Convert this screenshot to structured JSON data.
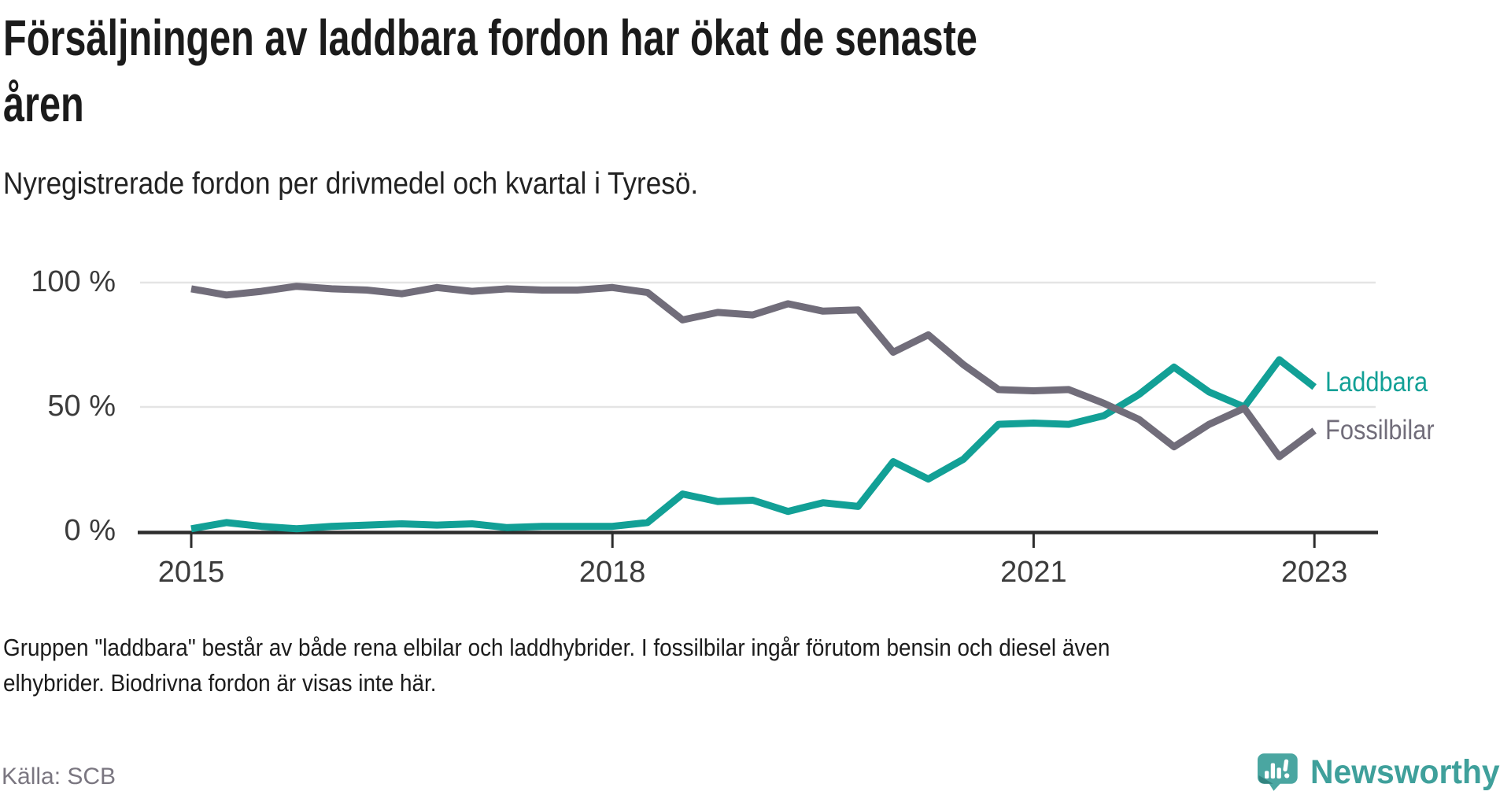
{
  "header": {
    "title_line1": "Försäljningen av laddbara fordon har ökat de senaste",
    "title_line2": "åren",
    "subtitle": "Nyregistrerade fordon per drivmedel och kvartal i Tyresö."
  },
  "chart_data": {
    "type": "line",
    "x": [
      "2015 Q1",
      "2015 Q2",
      "2015 Q3",
      "2015 Q4",
      "2016 Q1",
      "2016 Q2",
      "2016 Q3",
      "2016 Q4",
      "2017 Q1",
      "2017 Q2",
      "2017 Q3",
      "2017 Q4",
      "2018 Q1",
      "2018 Q2",
      "2018 Q3",
      "2018 Q4",
      "2019 Q1",
      "2019 Q2",
      "2019 Q3",
      "2019 Q4",
      "2020 Q1",
      "2020 Q2",
      "2020 Q3",
      "2020 Q4",
      "2021 Q1",
      "2021 Q2",
      "2021 Q3",
      "2021 Q4",
      "2022 Q1",
      "2022 Q2",
      "2022 Q3",
      "2022 Q4",
      "2023 Q1"
    ],
    "series": [
      {
        "name": "Laddbara",
        "color": "#12A096",
        "values": [
          1,
          3.5,
          2,
          1,
          2,
          2.5,
          3,
          2.5,
          3,
          1.5,
          2,
          2,
          2,
          3.5,
          15,
          12,
          12.5,
          8,
          11.5,
          10,
          28,
          21,
          29,
          43,
          43.5,
          43,
          46.5,
          55,
          66,
          56,
          50,
          69,
          58
        ]
      },
      {
        "name": "Fossilbilar",
        "color": "#716D7A",
        "values": [
          97.5,
          95,
          96.5,
          98.5,
          97.5,
          97,
          95.5,
          98,
          96.5,
          97.5,
          97,
          97,
          98,
          96,
          85,
          88,
          87,
          91.5,
          88.5,
          89,
          72,
          79,
          67,
          57,
          56.5,
          57,
          51.5,
          45,
          34,
          43,
          49.5,
          30,
          40.5
        ]
      }
    ],
    "title": "Försäljningen av laddbara fordon har ökat de senaste åren",
    "xlabel": "",
    "ylabel": "",
    "ylim": [
      0,
      100
    ],
    "unit": "%",
    "grid": "horizontal",
    "legend_position": "right of line ends",
    "y_ticks": [
      {
        "label": "0 %",
        "value": 0
      },
      {
        "label": "50 %",
        "value": 50
      },
      {
        "label": "100 %",
        "value": 100
      }
    ],
    "x_ticks": [
      {
        "label": "2015",
        "quarter_index": 0
      },
      {
        "label": "2018",
        "quarter_index": 12
      },
      {
        "label": "2021",
        "quarter_index": 24
      },
      {
        "label": "2023",
        "quarter_index": 32
      }
    ]
  },
  "footer": {
    "note_line1": "Gruppen \"laddbara\" består av både rena elbilar och laddhybrider. I fossilbilar ingår förutom bensin och diesel även",
    "note_line2": "elhybrider. Biodrivna fordon är visas inte här.",
    "source": "Källa: SCB"
  },
  "branding": {
    "name": "Newsworthy",
    "logo_icon": "newsworthy-speech-bubble-bar-chart-icon",
    "brand_color": "#3fa09b",
    "icon_color": "#4aa6a1"
  },
  "colors": {
    "background": "#ffffff",
    "title_text": "#1b1b1b",
    "axis_line": "#2d2d2d",
    "axis_label": "#3b3b3b",
    "gridline": "#e4e4e4",
    "laddbara": "#12A096",
    "fossilbilar": "#716D7A",
    "source_text": "#7a7680"
  }
}
